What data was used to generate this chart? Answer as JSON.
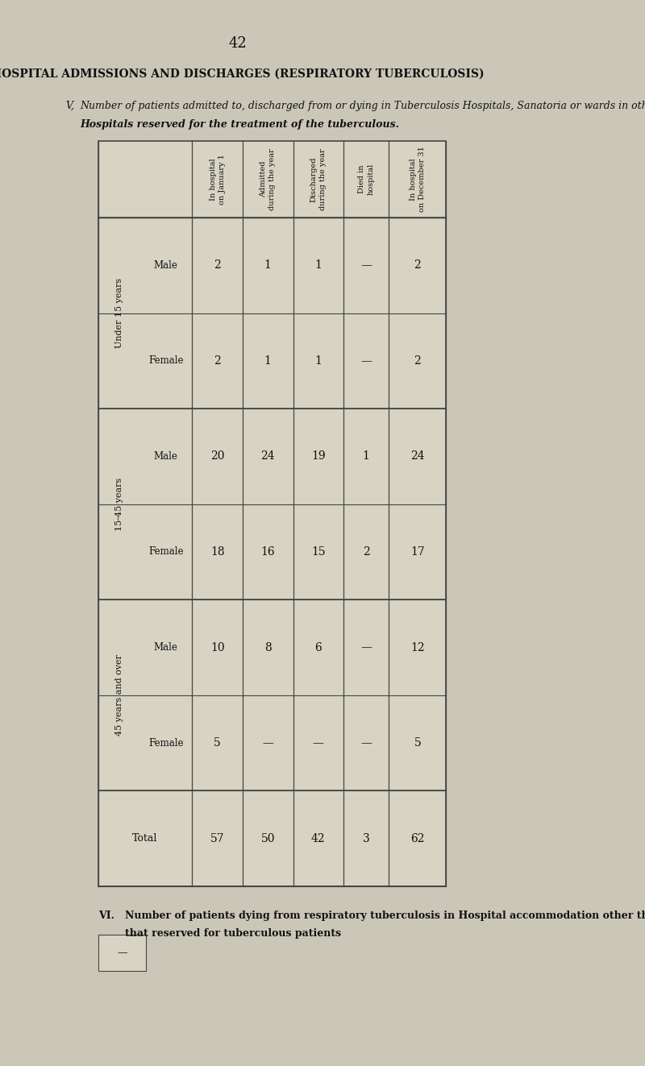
{
  "page_number": "42",
  "title": "HOSPITAL ADMISSIONS AND DISCHARGES (RESPIRATORY TUBERCULOSIS)",
  "subtitle_v": "V,",
  "subtitle": "Number of patients admitted to, discharged from or dying in Tuberculosis Hospitals, Sanatoria or wards in other",
  "subtitle2": "Hospitals reserved for the treatment of the tuberculous.",
  "col_headers": [
    "",
    "In hospital\non January 1",
    "Admitted\nduring the year",
    "Discharged\nduring the year",
    "Died in\nhospital",
    "In hospital\non December 31"
  ],
  "row_groups": [
    {
      "label": "Under 15 years",
      "rows": [
        {
          "sex": "Male",
          "jan1": "2",
          "admitted": "1",
          "discharged": "1",
          "died": "—",
          "dec31": "2"
        },
        {
          "sex": "Female",
          "jan1": "2",
          "admitted": "1",
          "discharged": "1",
          "died": "—",
          "dec31": "2"
        }
      ]
    },
    {
      "label": "15-45 years",
      "rows": [
        {
          "sex": "Male",
          "jan1": "20",
          "admitted": "24",
          "discharged": "19",
          "died": "1",
          "dec31": "24"
        },
        {
          "sex": "Female",
          "jan1": "18",
          "admitted": "16",
          "discharged": "15",
          "died": "2",
          "dec31": "17"
        }
      ]
    },
    {
      "label": "45 years and over",
      "rows": [
        {
          "sex": "Male",
          "jan1": "10",
          "admitted": "8",
          "discharged": "6",
          "died": "—",
          "dec31": "12"
        },
        {
          "sex": "Female",
          "jan1": "5",
          "admitted": "—",
          "discharged": "—",
          "died": "—",
          "dec31": "5"
        }
      ]
    },
    {
      "label": "Total",
      "rows": [
        {
          "sex": "",
          "jan1": "57",
          "admitted": "50",
          "discharged": "42",
          "died": "3",
          "dec31": "62"
        }
      ]
    }
  ],
  "footnote_roman": "VI.",
  "footnote": "Number of patients dying from respiratory tuberculosis in Hospital accommodation other than",
  "footnote2": "that reserved for tuberculous patients",
  "bg_color": "#cbc7b8",
  "table_bg": "#d8d4c4",
  "line_color": "#444444",
  "text_color": "#111111"
}
